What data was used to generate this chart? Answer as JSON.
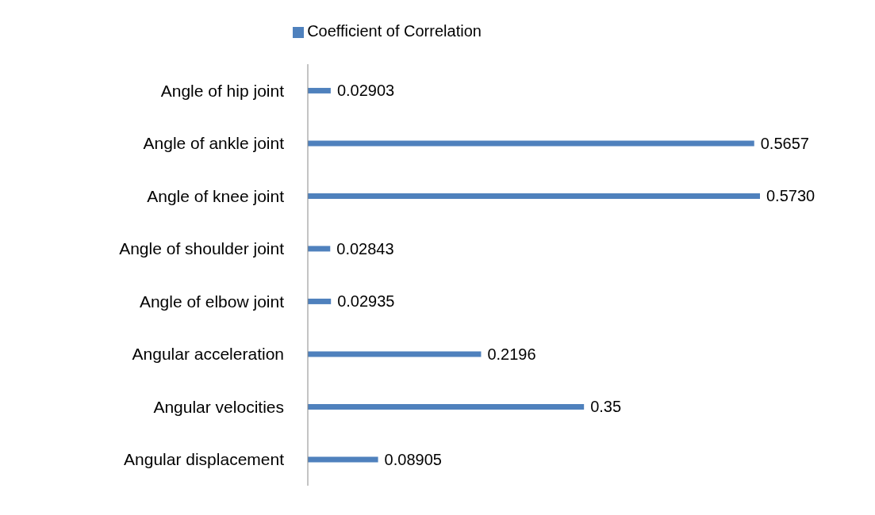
{
  "chart_data": {
    "type": "bar",
    "orientation": "horizontal",
    "categories": [
      "Angle of hip joint",
      "Angle of ankle joint",
      "Angle of knee joint",
      "Angle of shoulder joint",
      "Angle of elbow joint",
      "Angular acceleration",
      "Angular velocities",
      "Angular displacement"
    ],
    "series": [
      {
        "name": "Coefficient of Correlation",
        "color": "#4f81bd",
        "values": [
          0.02903,
          0.5657,
          0.573,
          0.02843,
          0.02935,
          0.2196,
          0.35,
          0.08905
        ],
        "value_labels": [
          "0.02903",
          "0.5657",
          "0.5730",
          "0.02843",
          "0.02935",
          "0.2196",
          "0.35",
          "0.08905"
        ]
      }
    ],
    "legend": "top",
    "grid": false
  }
}
